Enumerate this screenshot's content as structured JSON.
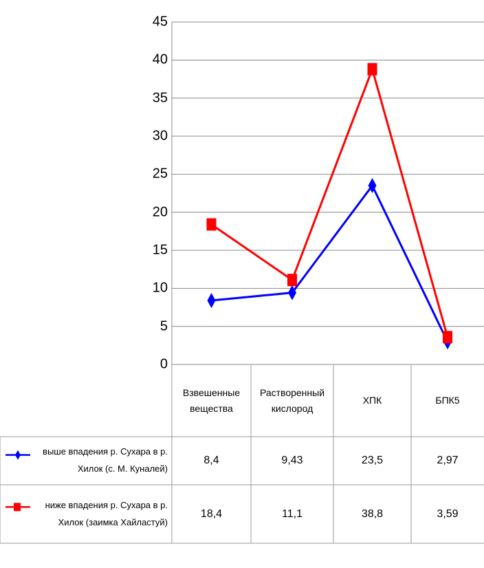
{
  "chart_data": {
    "type": "line",
    "categories": [
      "Взвешенные вещества",
      "Растворенный кислород",
      "ХПК",
      "БПК5"
    ],
    "series": [
      {
        "name": "выше впадения р. Сухара в р. Хилок (с. М. Куналей)",
        "color": "#0000ff",
        "marker": "diamond",
        "values": [
          8.4,
          9.43,
          23.5,
          2.97
        ],
        "value_labels": [
          "8,4",
          "9,43",
          "23,5",
          "2,97"
        ]
      },
      {
        "name": "ниже впадения р. Сухара в р. Хилок (заимка Хайластуй)",
        "color": "#ff0000",
        "marker": "square",
        "values": [
          18.4,
          11.1,
          38.8,
          3.59
        ],
        "value_labels": [
          "18,4",
          "11,1",
          "38,8",
          "3,59"
        ]
      }
    ],
    "ylim": [
      0,
      45
    ],
    "yticks": [
      0,
      5,
      10,
      15,
      20,
      25,
      30,
      35,
      40,
      45
    ],
    "grid": true,
    "data_table": true
  }
}
